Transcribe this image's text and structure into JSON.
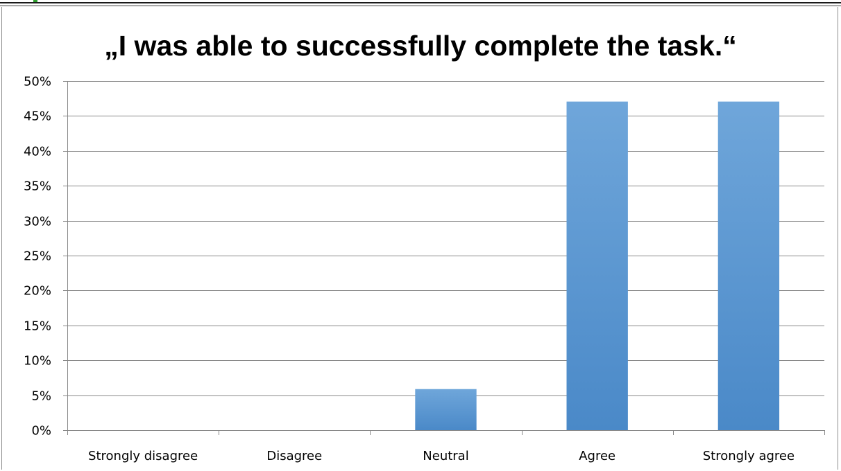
{
  "colors": {
    "bar_top": "#6fa6da",
    "bar_bottom": "#4a89c8",
    "grid": "#868686",
    "accent_mark": "#2e9e2e"
  },
  "chart_data": {
    "type": "bar",
    "title": "„I was able to successfully complete the task.“",
    "categories": [
      "Strongly disagree",
      "Disagree",
      "Neutral",
      "Agree",
      "Strongly agree"
    ],
    "values": [
      0,
      0,
      5.88,
      47.06,
      47.06
    ],
    "ylim": [
      0,
      50
    ],
    "y_ticks": [
      0,
      5,
      10,
      15,
      20,
      25,
      30,
      35,
      40,
      45,
      50
    ],
    "y_tick_labels": [
      "0%",
      "5%",
      "10%",
      "15%",
      "20%",
      "25%",
      "30%",
      "35%",
      "40%",
      "45%",
      "50%"
    ],
    "grid": true,
    "legend": "none"
  }
}
